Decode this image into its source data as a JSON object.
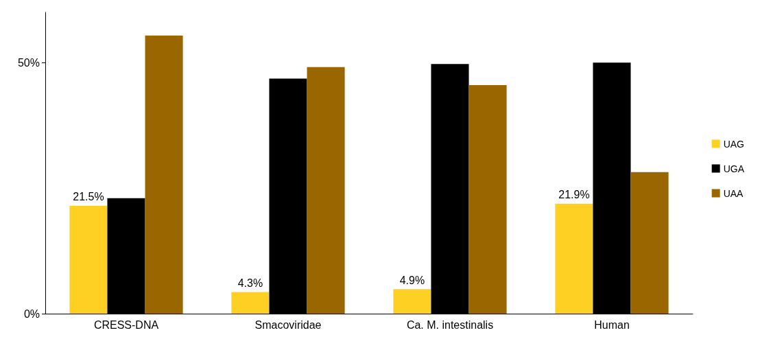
{
  "chart_data": {
    "type": "bar",
    "categories": [
      "CRESS-DNA",
      "Smacoviridae",
      "Ca. M. intestinalis",
      "Human"
    ],
    "series": [
      {
        "name": "UAG",
        "color": "#fdd023",
        "values": [
          21.5,
          4.3,
          4.9,
          21.9
        ],
        "value_labels": [
          "21.5%",
          "4.3%",
          "4.9%",
          "21.9%"
        ]
      },
      {
        "name": "UGA",
        "color": "#000000",
        "values": [
          23.0,
          46.8,
          49.7,
          50.0
        ]
      },
      {
        "name": "UAA",
        "color": "#996600",
        "values": [
          55.4,
          49.1,
          45.5,
          28.2
        ]
      }
    ],
    "ylim": [
      0,
      60
    ],
    "yticks": [
      {
        "value": 0,
        "label": "0%"
      },
      {
        "value": 50,
        "label": "50%"
      }
    ],
    "grid": false,
    "legend": "right"
  }
}
